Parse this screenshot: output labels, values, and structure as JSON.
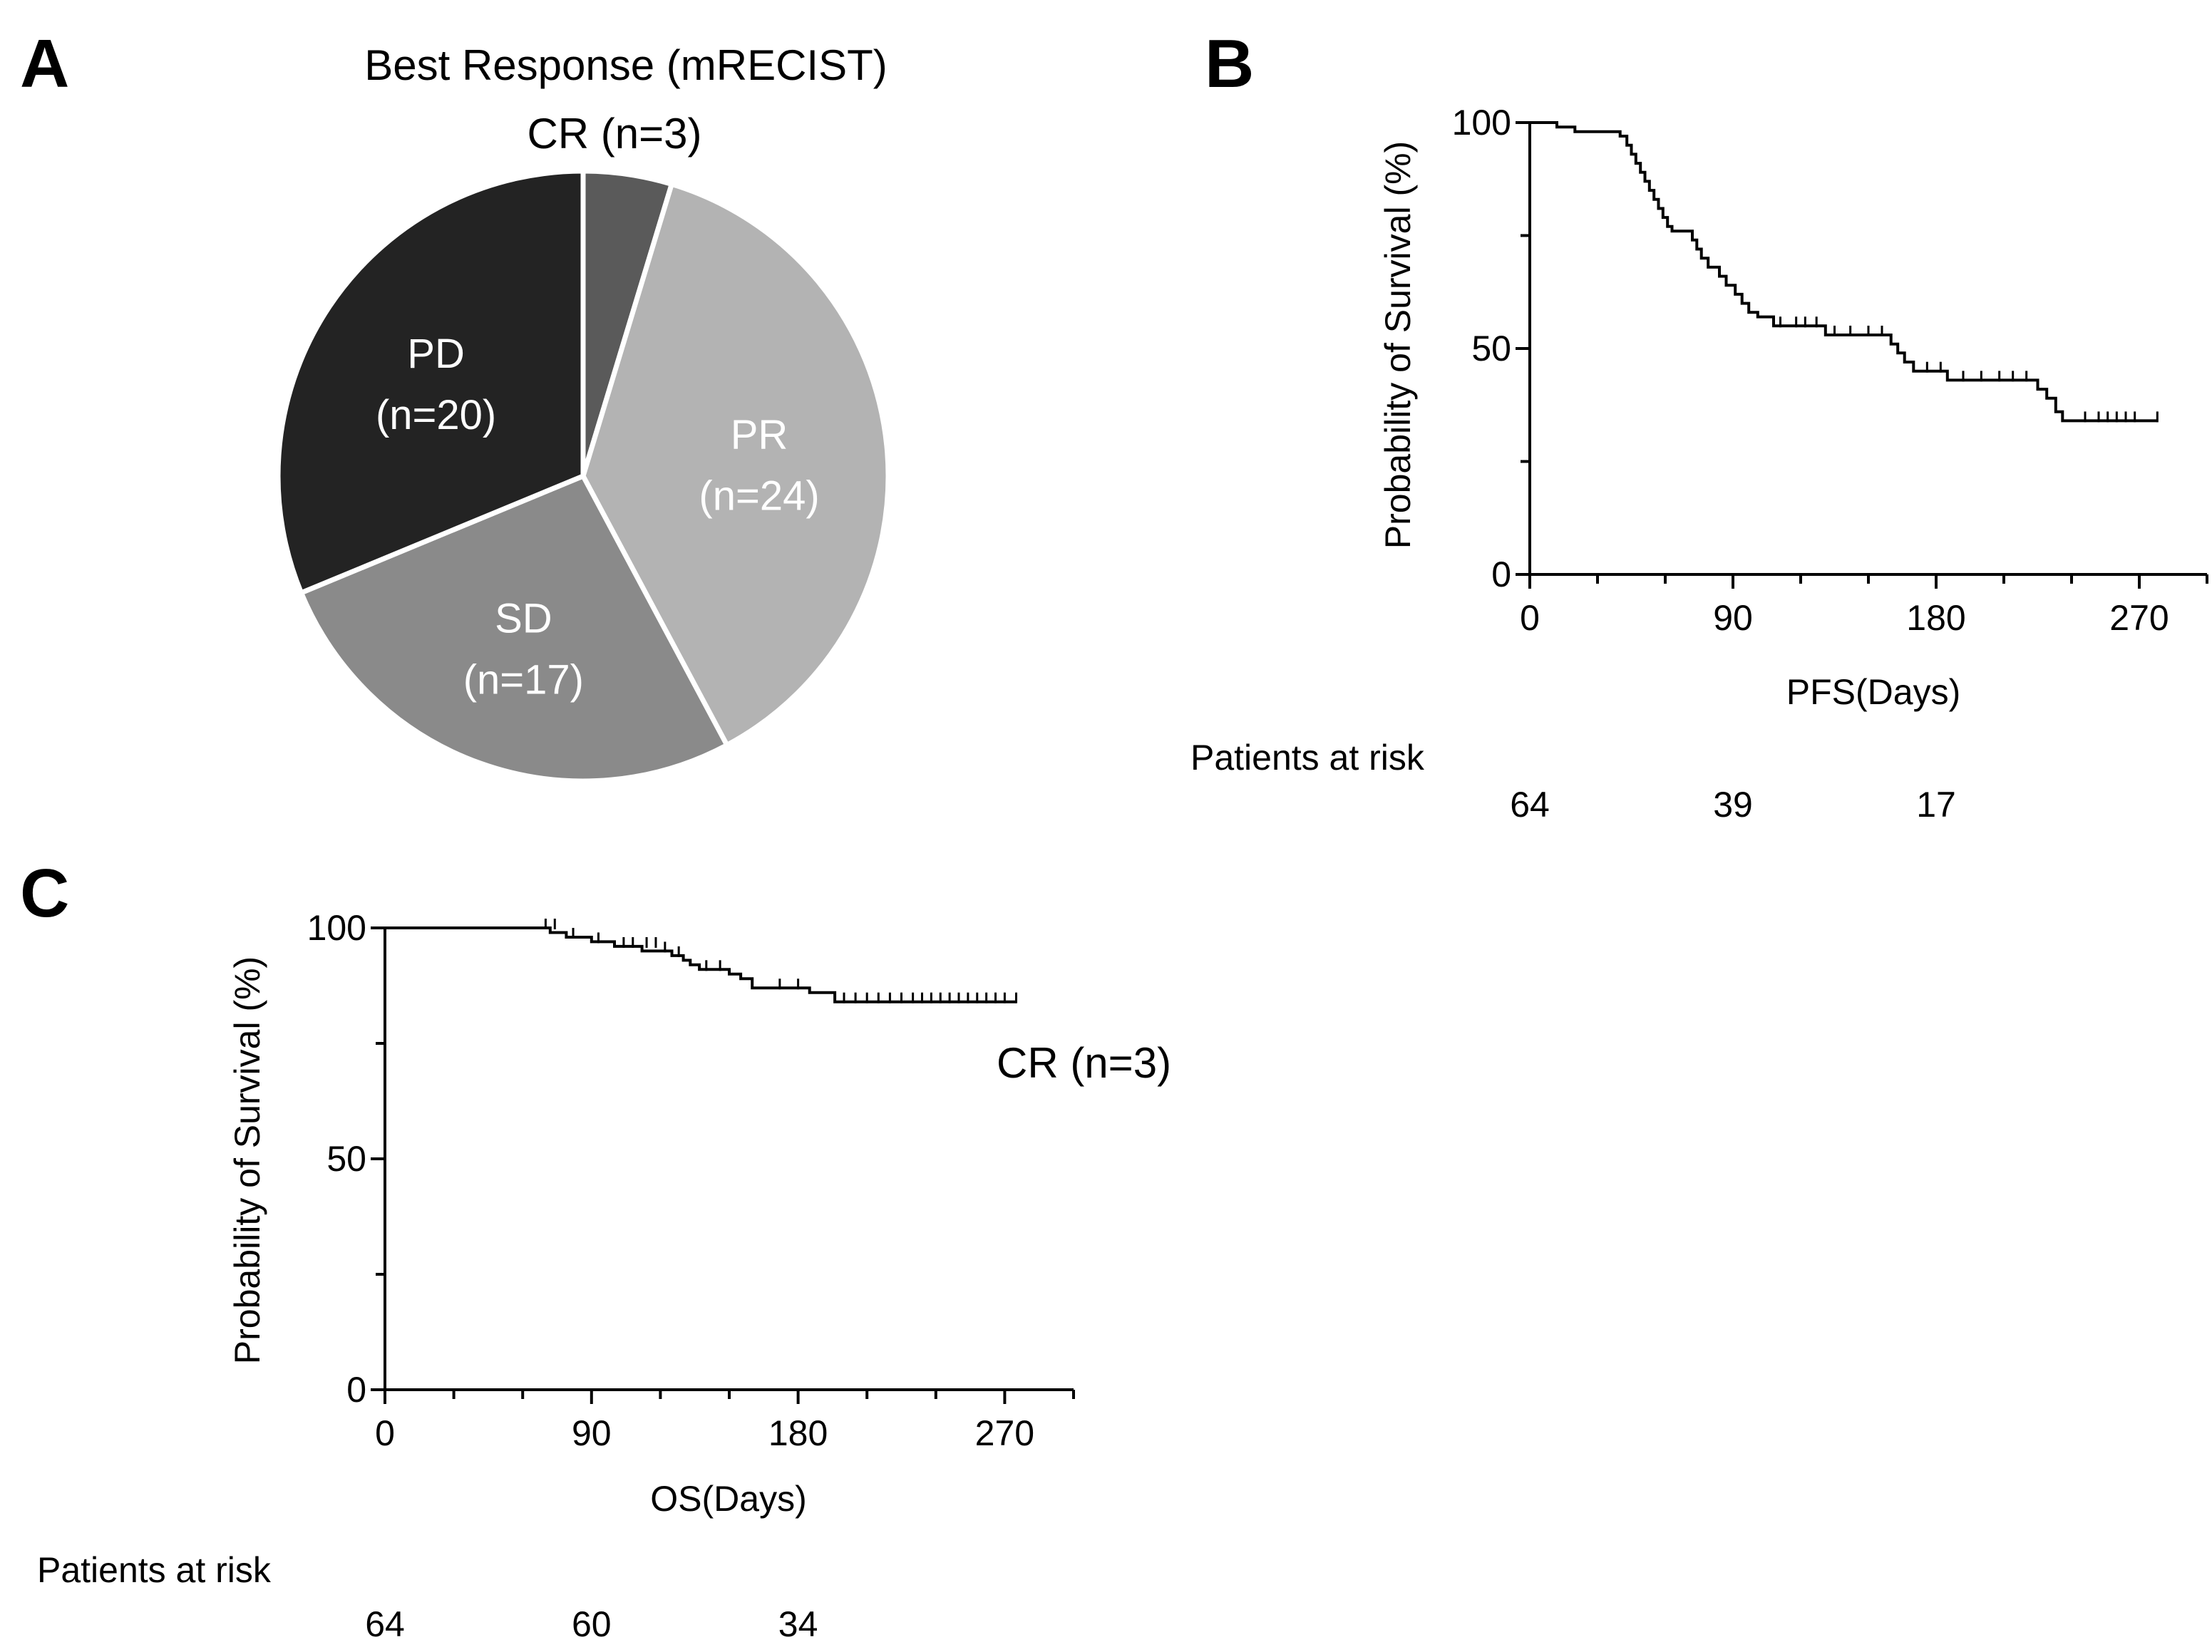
{
  "chart_data": [
    {
      "panel": "A",
      "type": "pie",
      "title": "Best Response (mRECIST)",
      "slices": [
        {
          "label": "CR",
          "count_label": "(n=3)",
          "value": 3,
          "color": "#5a5a5a",
          "text_color": "#222222"
        },
        {
          "label": "PR",
          "count_label": "(n=24)",
          "value": 24,
          "color": "#b3b3b3",
          "text_color": "#ffffff"
        },
        {
          "label": "SD",
          "count_label": "(n=17)",
          "value": 17,
          "color": "#8a8a8a",
          "text_color": "#ffffff"
        },
        {
          "label": "PD",
          "count_label": "(n=20)",
          "value": 20,
          "color": "#232323",
          "text_color": "#ffffff"
        }
      ]
    },
    {
      "panel": "B",
      "type": "line",
      "subtype": "kaplan-meier",
      "xlabel": "PFS(Days)",
      "ylabel": "Probability of Survival (%)",
      "xlim": [
        0,
        300
      ],
      "ylim": [
        0,
        100
      ],
      "xticks": [
        0,
        90,
        180,
        270
      ],
      "yticks": [
        0,
        50,
        100
      ],
      "curve": [
        [
          0,
          100
        ],
        [
          12,
          100
        ],
        [
          12,
          99
        ],
        [
          20,
          99
        ],
        [
          20,
          98
        ],
        [
          40,
          98
        ],
        [
          40,
          97
        ],
        [
          43,
          97
        ],
        [
          43,
          95
        ],
        [
          45,
          95
        ],
        [
          45,
          93
        ],
        [
          47,
          93
        ],
        [
          47,
          91
        ],
        [
          49,
          91
        ],
        [
          49,
          89
        ],
        [
          51,
          89
        ],
        [
          51,
          87
        ],
        [
          53,
          87
        ],
        [
          53,
          85
        ],
        [
          55,
          85
        ],
        [
          55,
          83
        ],
        [
          57,
          83
        ],
        [
          57,
          81
        ],
        [
          59,
          81
        ],
        [
          59,
          79
        ],
        [
          61,
          79
        ],
        [
          61,
          77
        ],
        [
          63,
          77
        ],
        [
          63,
          76
        ],
        [
          72,
          76
        ],
        [
          72,
          74
        ],
        [
          74,
          74
        ],
        [
          74,
          72
        ],
        [
          76,
          72
        ],
        [
          76,
          70
        ],
        [
          79,
          70
        ],
        [
          79,
          68
        ],
        [
          84,
          68
        ],
        [
          84,
          66
        ],
        [
          87,
          66
        ],
        [
          87,
          64
        ],
        [
          91,
          64
        ],
        [
          91,
          62
        ],
        [
          94,
          62
        ],
        [
          94,
          60
        ],
        [
          97,
          60
        ],
        [
          97,
          58
        ],
        [
          101,
          58
        ],
        [
          101,
          57
        ],
        [
          108,
          57
        ],
        [
          108,
          55
        ],
        [
          131,
          55
        ],
        [
          131,
          53
        ],
        [
          160,
          53
        ],
        [
          160,
          51
        ],
        [
          163,
          51
        ],
        [
          163,
          49
        ],
        [
          166,
          49
        ],
        [
          166,
          47
        ],
        [
          170,
          47
        ],
        [
          170,
          45
        ],
        [
          185,
          45
        ],
        [
          185,
          43
        ],
        [
          225,
          43
        ],
        [
          225,
          41
        ],
        [
          229,
          41
        ],
        [
          229,
          39
        ],
        [
          233,
          39
        ],
        [
          233,
          36
        ],
        [
          236,
          36
        ],
        [
          236,
          34
        ],
        [
          278,
          34
        ]
      ],
      "censor_marks": [
        [
          111,
          55
        ],
        [
          118,
          55
        ],
        [
          122,
          55
        ],
        [
          127,
          55
        ],
        [
          135,
          53
        ],
        [
          142,
          53
        ],
        [
          150,
          53
        ],
        [
          156,
          53
        ],
        [
          176,
          45
        ],
        [
          182,
          45
        ],
        [
          192,
          43
        ],
        [
          200,
          43
        ],
        [
          208,
          43
        ],
        [
          214,
          43
        ],
        [
          220,
          43
        ],
        [
          246,
          34
        ],
        [
          252,
          34
        ],
        [
          256,
          34
        ],
        [
          260,
          34
        ],
        [
          264,
          34
        ],
        [
          268,
          34
        ],
        [
          278,
          34
        ]
      ],
      "risk_table": {
        "title": "Patients at risk",
        "values": [
          {
            "day": 0,
            "count": "64"
          },
          {
            "day": 90,
            "count": "39"
          },
          {
            "day": 180,
            "count": "17"
          }
        ]
      }
    },
    {
      "panel": "C",
      "type": "line",
      "subtype": "kaplan-meier",
      "xlabel": "OS(Days)",
      "ylabel": "Probability of Survival (%)",
      "xlim": [
        0,
        300
      ],
      "ylim": [
        0,
        100
      ],
      "xticks": [
        0,
        90,
        180,
        270
      ],
      "yticks": [
        0,
        50,
        100
      ],
      "annotation": "CR (n=3)",
      "curve": [
        [
          0,
          100
        ],
        [
          72,
          100
        ],
        [
          72,
          99
        ],
        [
          79,
          99
        ],
        [
          79,
          98
        ],
        [
          90,
          98
        ],
        [
          90,
          97
        ],
        [
          100,
          97
        ],
        [
          100,
          96
        ],
        [
          112,
          96
        ],
        [
          112,
          95
        ],
        [
          125,
          95
        ],
        [
          125,
          94
        ],
        [
          130,
          94
        ],
        [
          130,
          93
        ],
        [
          133,
          93
        ],
        [
          133,
          92
        ],
        [
          137,
          92
        ],
        [
          137,
          91
        ],
        [
          150,
          91
        ],
        [
          150,
          90
        ],
        [
          155,
          90
        ],
        [
          155,
          89
        ],
        [
          160,
          89
        ],
        [
          160,
          87
        ],
        [
          185,
          87
        ],
        [
          185,
          86
        ],
        [
          196,
          86
        ],
        [
          196,
          84
        ],
        [
          275,
          84
        ]
      ],
      "censor_marks": [
        [
          70,
          100
        ],
        [
          74,
          100
        ],
        [
          82,
          98
        ],
        [
          93,
          97
        ],
        [
          104,
          96
        ],
        [
          108,
          96
        ],
        [
          114,
          96
        ],
        [
          118,
          96
        ],
        [
          122,
          95
        ],
        [
          128,
          94
        ],
        [
          140,
          91
        ],
        [
          146,
          91
        ],
        [
          172,
          87
        ],
        [
          180,
          87
        ],
        [
          200,
          84
        ],
        [
          205,
          84
        ],
        [
          210,
          84
        ],
        [
          215,
          84
        ],
        [
          220,
          84
        ],
        [
          225,
          84
        ],
        [
          230,
          84
        ],
        [
          234,
          84
        ],
        [
          238,
          84
        ],
        [
          242,
          84
        ],
        [
          246,
          84
        ],
        [
          250,
          84
        ],
        [
          254,
          84
        ],
        [
          258,
          84
        ],
        [
          262,
          84
        ],
        [
          266,
          84
        ],
        [
          270,
          84
        ],
        [
          275,
          84
        ]
      ],
      "risk_table": {
        "title": "Patients at risk",
        "values": [
          {
            "day": 0,
            "count": "64"
          },
          {
            "day": 90,
            "count": "60"
          },
          {
            "day": 180,
            "count": "34"
          }
        ]
      }
    }
  ],
  "panels": {
    "a": {
      "letter": "A",
      "title": "Best Response (mRECIST)",
      "cr_label": "CR (n=3)"
    },
    "b": {
      "letter": "B"
    },
    "c": {
      "letter": "C"
    }
  },
  "colors": {
    "line": "#000000",
    "background": "#ffffff",
    "slice_border": "#ffffff"
  }
}
